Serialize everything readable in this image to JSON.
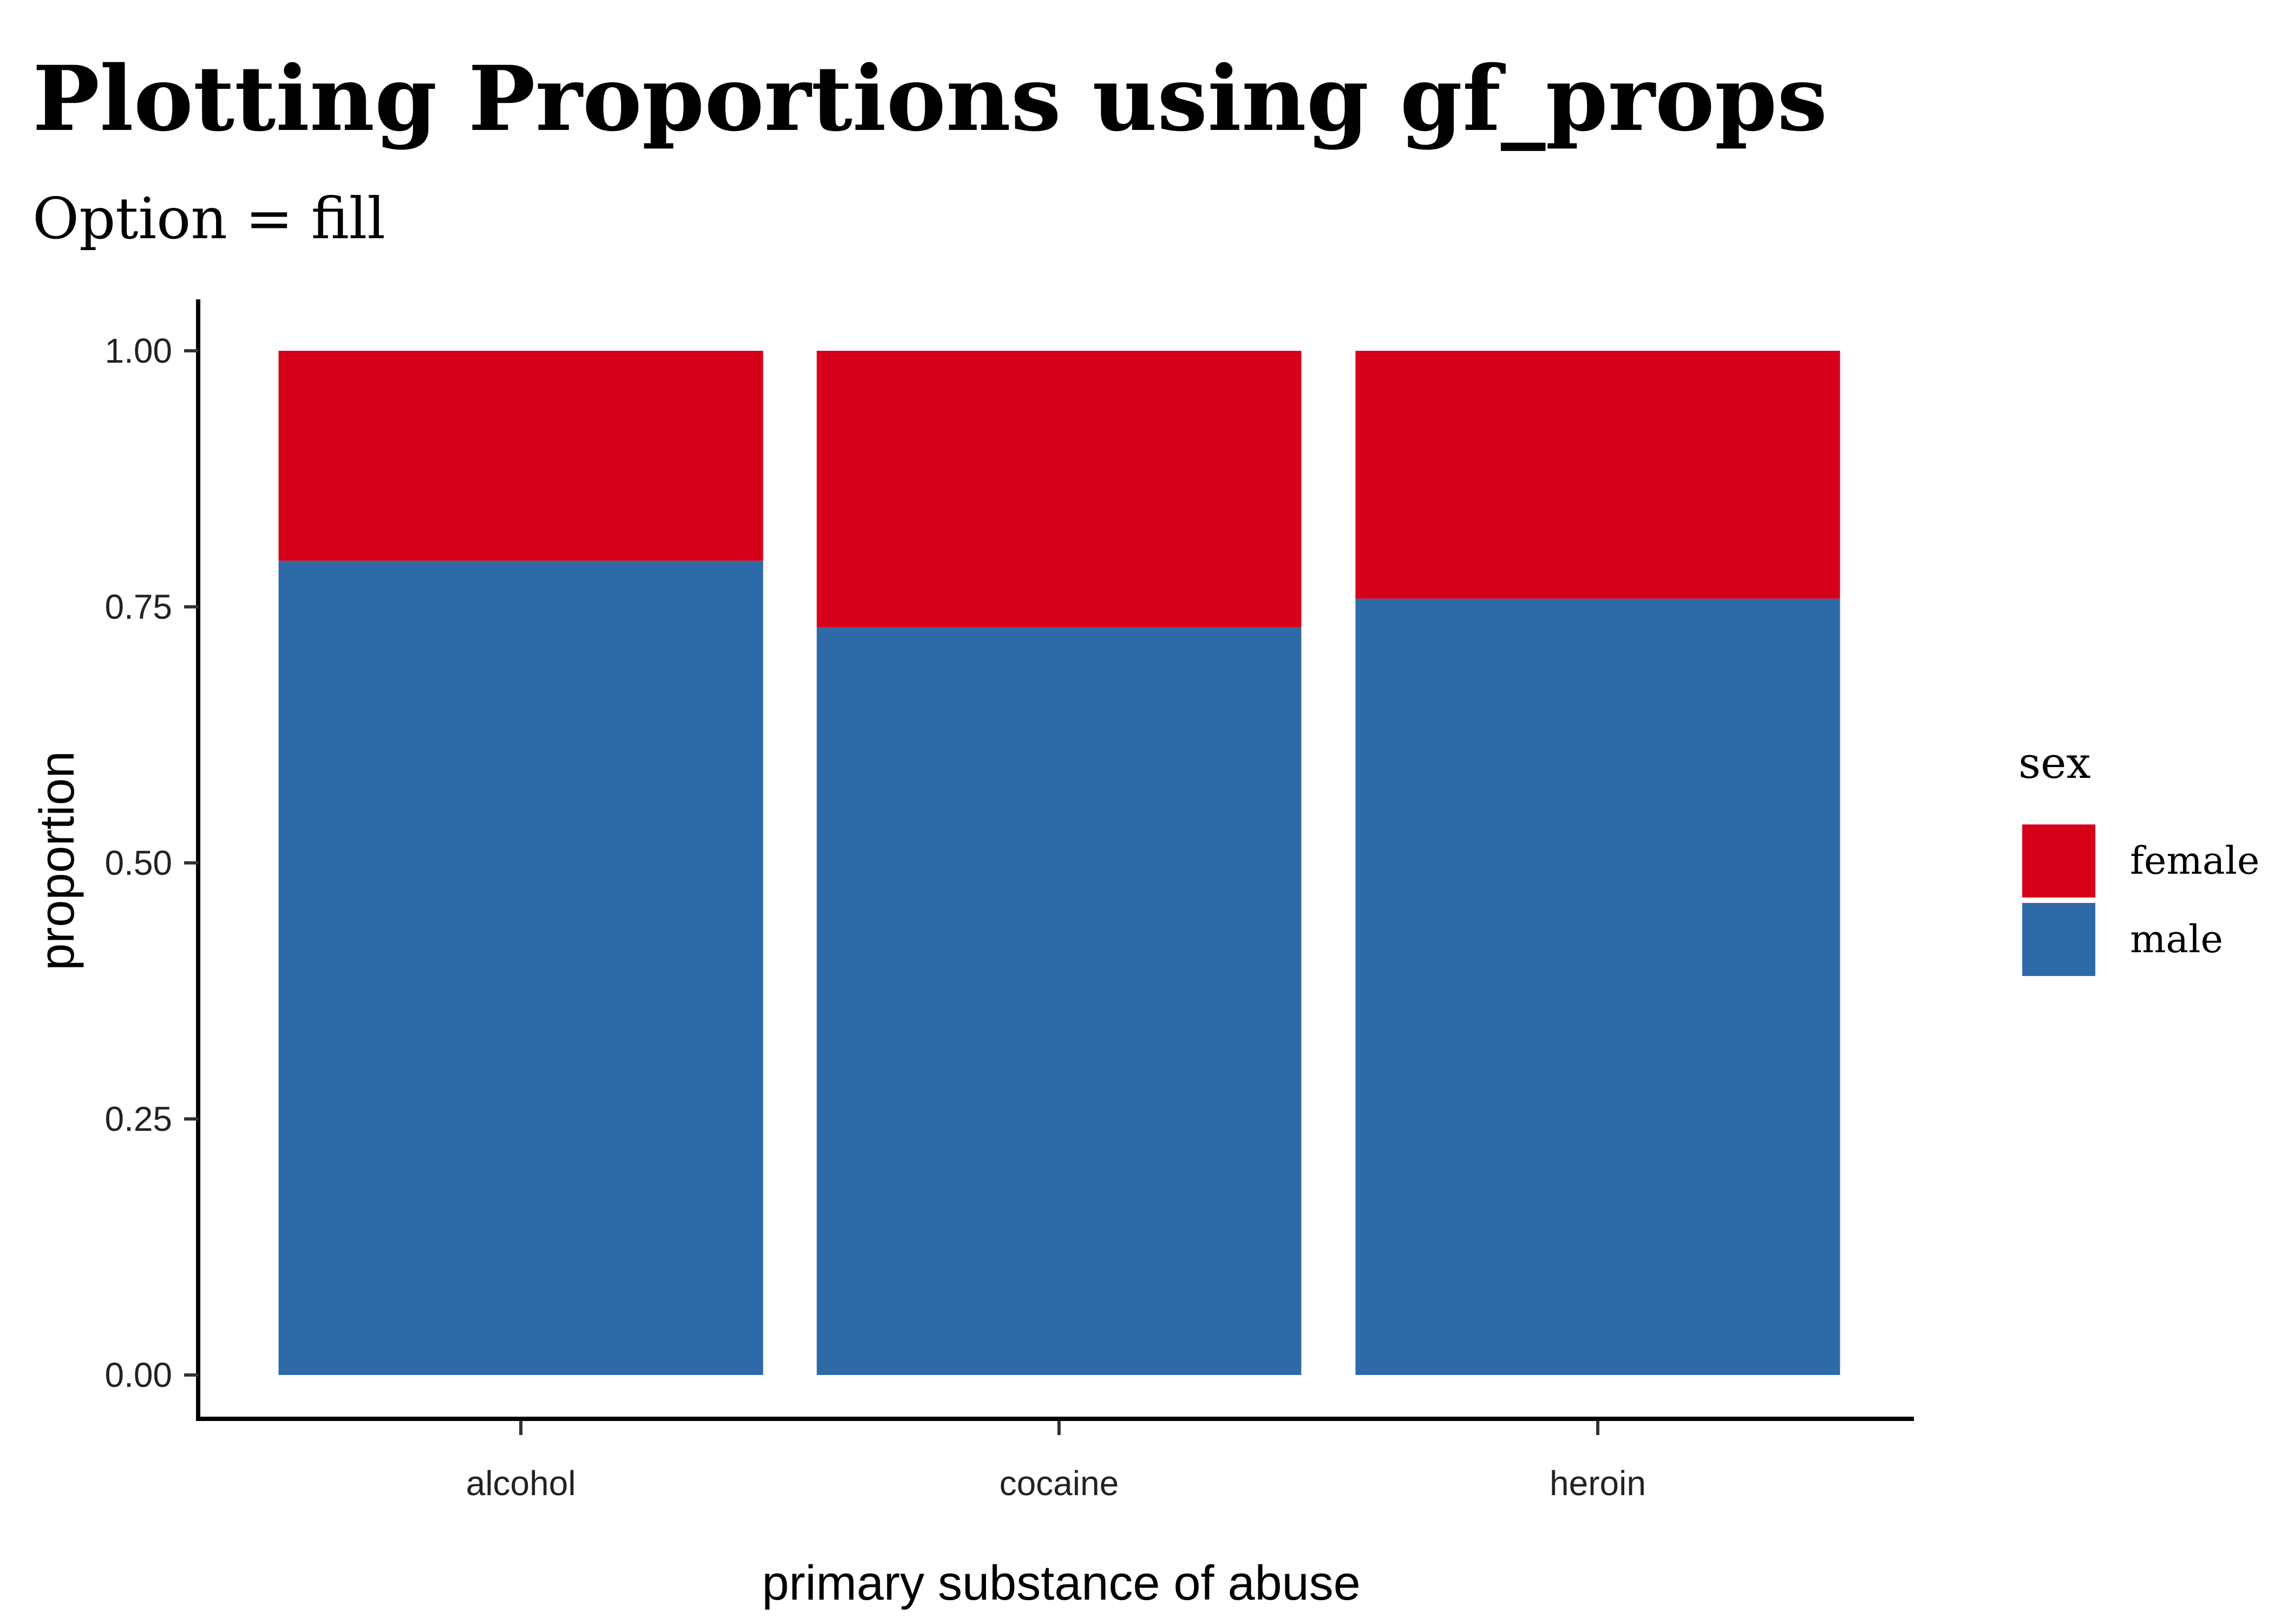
{
  "chart_data": {
    "type": "bar",
    "stacked": true,
    "title": "Plotting Proportions using gf_props",
    "subtitle": "Option = fill",
    "xlabel": "primary substance of abuse",
    "ylabel": "proportion",
    "categories": [
      "alcohol",
      "cocaine",
      "heroin"
    ],
    "series": [
      {
        "name": "male",
        "color": "#2E6AA8",
        "values": [
          0.795,
          0.73,
          0.758
        ]
      },
      {
        "name": "female",
        "color": "#D7001A",
        "values": [
          0.205,
          0.27,
          0.242
        ]
      }
    ],
    "ylim": [
      0,
      1
    ],
    "yticks": [
      "0.00",
      "0.25",
      "0.50",
      "0.75",
      "1.00"
    ],
    "ytick_values": [
      0,
      0.25,
      0.5,
      0.75,
      1
    ],
    "grid": false,
    "legend": {
      "title": "sex",
      "position": "right",
      "entries": [
        "female",
        "male"
      ]
    }
  }
}
